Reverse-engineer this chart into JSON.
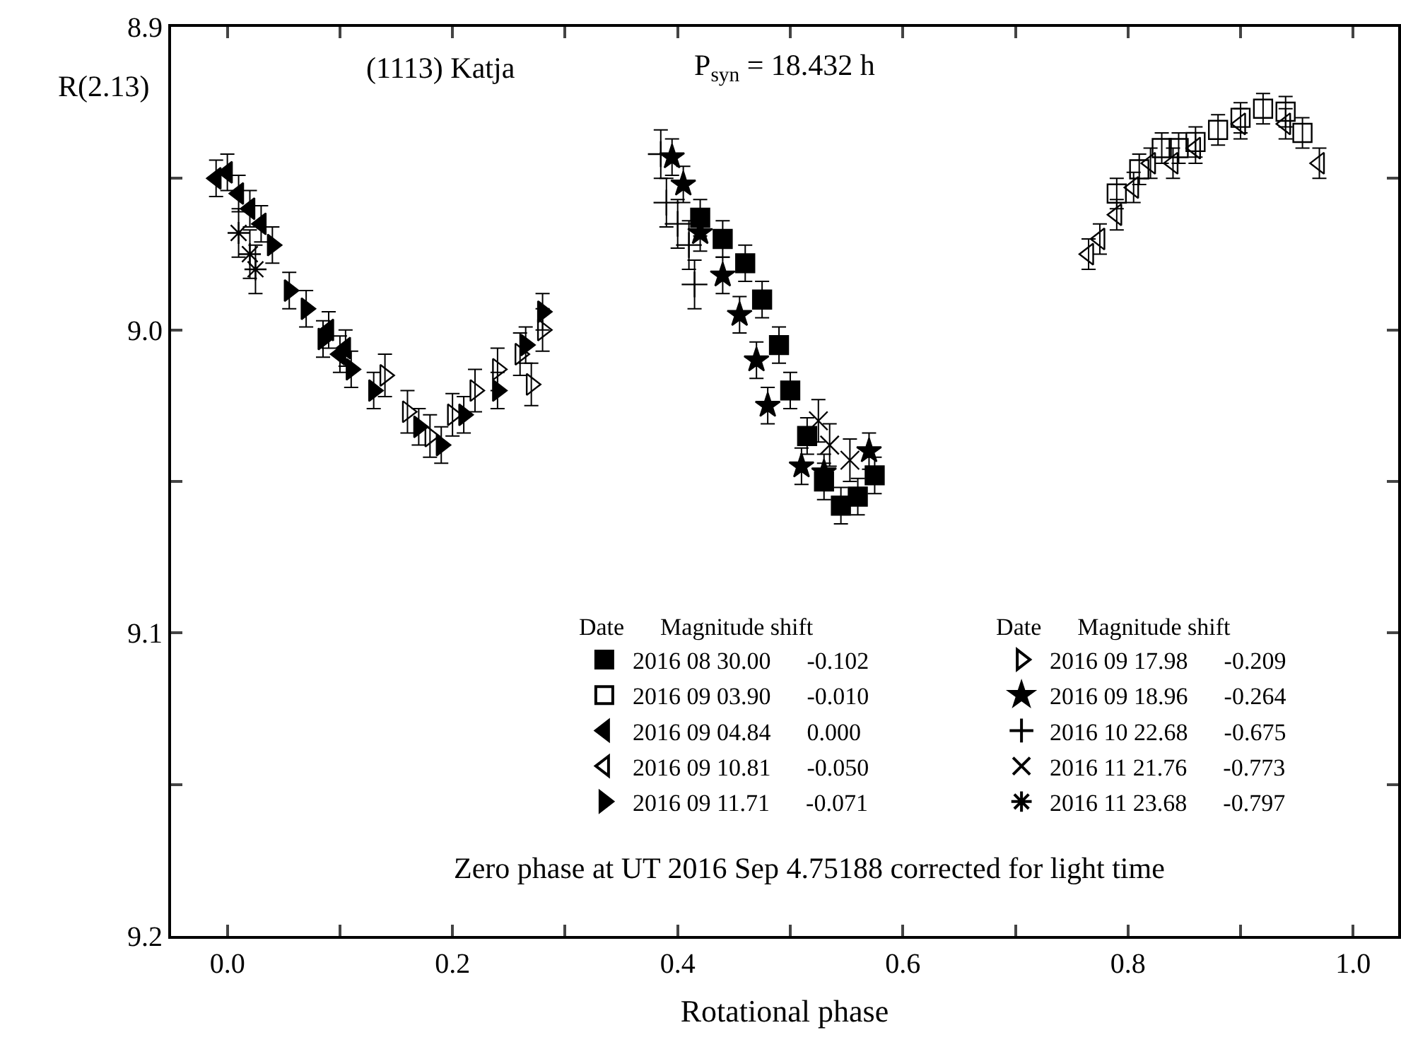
{
  "chart_data": {
    "type": "scatter",
    "xlabel": "Rotational phase",
    "ylabel": "R(2.13)",
    "legend_title": "Date   Magnitude shift",
    "annotations": [
      "(1113) Katja",
      "P$_{syn}$ = 18.432 h",
      "Zero phase at UT 2016 Sep 4.75188 corrected for light time"
    ],
    "xlim": [
      -0.05,
      1.04
    ],
    "xticks": [
      {
        "value": 0,
        "label": "0.0"
      },
      {
        "value": 0.1,
        "label": null
      },
      {
        "value": 0.2,
        "label": "0.2"
      },
      {
        "value": 0.3,
        "label": null
      },
      {
        "value": 0.4,
        "label": "0.4"
      },
      {
        "value": 0.5,
        "label": null
      },
      {
        "value": 0.6,
        "label": "0.6"
      },
      {
        "value": 0.7,
        "label": null
      },
      {
        "value": 0.8,
        "label": "0.8"
      },
      {
        "value": 0.9,
        "label": null
      },
      {
        "value": 1.0,
        "label": "1.0"
      }
    ],
    "ylim": [
      9.2,
      8.9
    ],
    "yticks": [
      {
        "value": 8.9,
        "label": "8.9"
      },
      {
        "value": 8.95,
        "label": null
      },
      {
        "value": 9.0,
        "label": "9.0"
      },
      {
        "value": 9.05,
        "label": null
      },
      {
        "value": 9.1,
        "label": "9.1"
      },
      {
        "value": 9.15,
        "label": null
      },
      {
        "value": 9.2,
        "label": "9.2"
      }
    ],
    "legend": "bottom",
    "series": [
      {
        "name": "2016 08 30.00 -0.102",
        "color": "#000000",
        "marker": "square",
        "x": [
          0.42,
          0.44,
          0.46,
          0.475,
          0.49,
          0.5,
          0.515,
          0.53,
          0.545,
          0.56,
          0.575
        ],
        "values": [
          8.963,
          8.97,
          8.978,
          8.99,
          9.005,
          9.02,
          9.035,
          9.05,
          9.058,
          9.055,
          9.048
        ],
        "errors": [
          0.006,
          0.006,
          0.006,
          0.006,
          0.006,
          0.006,
          0.006,
          0.006,
          0.006,
          0.006,
          0.006
        ]
      },
      {
        "name": "2016 09 03.90 -0.010",
        "color": "#000000",
        "marker": "square-open",
        "x": [
          0.79,
          0.81,
          0.83,
          0.845,
          0.86,
          0.88,
          0.9,
          0.92,
          0.94,
          0.955
        ],
        "values": [
          8.955,
          8.947,
          8.94,
          8.94,
          8.938,
          8.934,
          8.93,
          8.927,
          8.928,
          8.935
        ],
        "errors": [
          0.005,
          0.005,
          0.005,
          0.005,
          0.005,
          0.005,
          0.005,
          0.005,
          0.005,
          0.005
        ]
      },
      {
        "name": "2016 09 04.84 0.000",
        "color": "#000000",
        "marker": "triangle-left",
        "x": [
          -0.01,
          0.0,
          0.01,
          0.02,
          0.03,
          0.09,
          0.1,
          0.105
        ],
        "values": [
          8.95,
          8.948,
          8.955,
          8.96,
          8.965,
          9.0,
          9.008,
          9.006
        ],
        "errors": [
          0.006,
          0.006,
          0.006,
          0.006,
          0.006,
          0.006,
          0.006,
          0.006
        ]
      },
      {
        "name": "2016 09 10.81 -0.050",
        "color": "#000000",
        "marker": "triangle-left-open",
        "x": [
          0.765,
          0.775,
          0.79,
          0.805,
          0.82,
          0.84,
          0.86,
          0.9,
          0.94,
          0.97
        ],
        "values": [
          8.975,
          8.97,
          8.962,
          8.953,
          8.945,
          8.945,
          8.94,
          8.932,
          8.932,
          8.945
        ],
        "errors": [
          0.005,
          0.005,
          0.005,
          0.005,
          0.005,
          0.005,
          0.005,
          0.005,
          0.005,
          0.005
        ]
      },
      {
        "name": "2016 09 11.71 -0.071",
        "color": "#000000",
        "marker": "triangle-right",
        "x": [
          0.04,
          0.055,
          0.07,
          0.085,
          0.11,
          0.13,
          0.17,
          0.19,
          0.21,
          0.24,
          0.265,
          0.28
        ],
        "values": [
          8.972,
          8.987,
          8.993,
          9.003,
          9.013,
          9.02,
          9.032,
          9.038,
          9.028,
          9.02,
          9.005,
          8.994
        ],
        "errors": [
          0.006,
          0.006,
          0.006,
          0.006,
          0.006,
          0.006,
          0.006,
          0.006,
          0.006,
          0.006,
          0.006,
          0.006
        ]
      },
      {
        "name": "2016 09 17.98 -0.209",
        "color": "#000000",
        "marker": "triangle-right-open",
        "x": [
          0.14,
          0.16,
          0.18,
          0.2,
          0.22,
          0.24,
          0.26,
          0.27,
          0.28
        ],
        "values": [
          9.015,
          9.027,
          9.035,
          9.028,
          9.02,
          9.013,
          9.008,
          9.018,
          9.0
        ],
        "errors": [
          0.007,
          0.007,
          0.007,
          0.007,
          0.007,
          0.007,
          0.007,
          0.007,
          0.007
        ]
      },
      {
        "name": "2016 09 18.96 -0.264",
        "color": "#000000",
        "marker": "star",
        "x": [
          0.395,
          0.405,
          0.42,
          0.44,
          0.455,
          0.47,
          0.48,
          0.51,
          0.53,
          0.57
        ],
        "values": [
          8.943,
          8.952,
          8.968,
          8.982,
          8.995,
          9.01,
          9.025,
          9.045,
          9.047,
          9.04
        ],
        "errors": [
          0.006,
          0.006,
          0.006,
          0.006,
          0.006,
          0.006,
          0.006,
          0.006,
          0.006,
          0.006
        ]
      },
      {
        "name": "2016 10 22.68 -0.675",
        "color": "#000000",
        "marker": "cross-thin-open",
        "x": [
          0.385,
          0.39,
          0.4,
          0.41,
          0.415
        ],
        "values": [
          8.942,
          8.958,
          8.965,
          8.972,
          8.985
        ],
        "errors": [
          0.008,
          0.008,
          0.008,
          0.008,
          0.008
        ]
      },
      {
        "name": "2016 11 21.76 -0.773",
        "color": "#000000",
        "marker": "cross-x",
        "x": [
          0.525,
          0.535,
          0.553
        ],
        "values": [
          9.03,
          9.038,
          9.043
        ],
        "errors": [
          0.007,
          0.007,
          0.007
        ]
      },
      {
        "name": "2016 11 23.68 -0.797",
        "color": "#000000",
        "marker": "cross-asterisk",
        "x": [
          0.01,
          0.02,
          0.025
        ],
        "values": [
          8.968,
          8.975,
          8.98
        ],
        "errors": [
          0.008,
          0.008,
          0.008
        ]
      }
    ]
  }
}
